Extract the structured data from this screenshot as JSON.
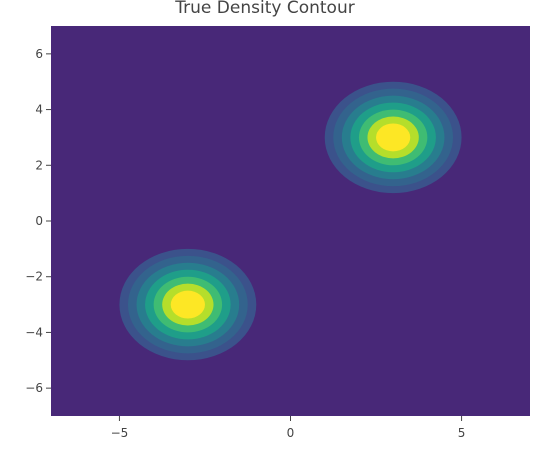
{
  "chart_data": {
    "type": "contour",
    "title": "True Density Contour",
    "xlabel": "",
    "ylabel": "",
    "xlim": [
      -7,
      7
    ],
    "ylim": [
      -7,
      7
    ],
    "xticks": [
      -5,
      0,
      5
    ],
    "xtick_labels": [
      "−5",
      "0",
      "5"
    ],
    "yticks": [
      -6,
      -4,
      -2,
      0,
      2,
      4,
      6
    ],
    "ytick_labels": [
      "−6",
      "−4",
      "−2",
      "0",
      "2",
      "4",
      "6"
    ],
    "grid": false,
    "legend": "none",
    "colorscale": "viridis",
    "components": [
      {
        "mean": [
          3,
          3
        ],
        "sd": 1
      },
      {
        "mean": [
          -3,
          -3
        ],
        "sd": 1
      }
    ],
    "contour_radii_sd": [
      2.0,
      1.75,
      1.5,
      1.25,
      1.0,
      0.75,
      0.5
    ],
    "contour_colors": [
      "#3b528b",
      "#33638d",
      "#287d8e",
      "#1f9e89",
      "#3fbc73",
      "#b5de2b",
      "#fde725"
    ],
    "background_color": "#482878"
  }
}
